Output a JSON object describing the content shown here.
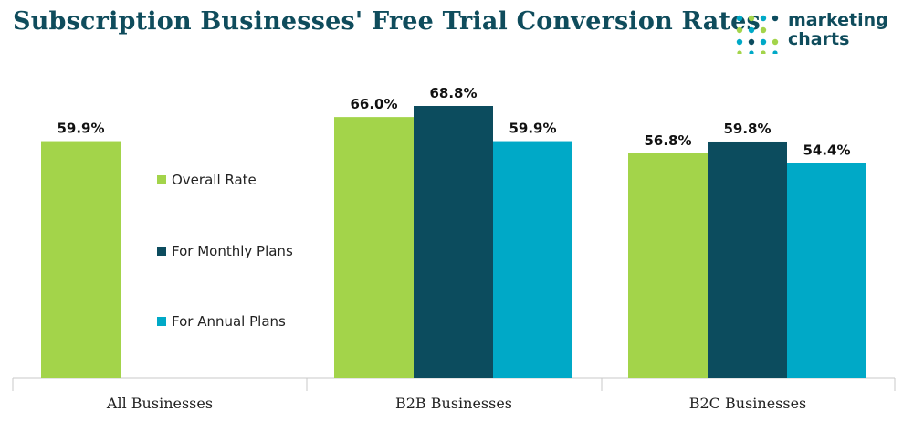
{
  "title": "Subscription Businesses' Free Trial Conversion Rates",
  "logo": {
    "line1": "marketing",
    "line2": "charts"
  },
  "colors": {
    "overall": "#a3d44a",
    "monthly": "#0c4c5e",
    "annual": "#00a9c7",
    "title": "#0f4c5c",
    "axis": "#c8c8c8"
  },
  "chart_data": {
    "type": "bar",
    "title": "Subscription Businesses' Free Trial Conversion Rates",
    "categories": [
      "All Businesses",
      "B2B Businesses",
      "B2C Businesses"
    ],
    "series": [
      {
        "name": "Overall Rate",
        "values": [
          59.9,
          66.0,
          56.8
        ],
        "labels": [
          "59.9%",
          "66.0%",
          "56.8%"
        ]
      },
      {
        "name": "For Monthly Plans",
        "values": [
          null,
          68.8,
          59.8
        ],
        "labels": [
          "",
          "68.8%",
          "59.8%"
        ]
      },
      {
        "name": "For Annual Plans",
        "values": [
          null,
          59.9,
          54.4
        ],
        "labels": [
          "",
          "59.9%",
          "54.4%"
        ]
      }
    ],
    "ylim": [
      0,
      75
    ],
    "grid": false,
    "legend": "inside-left"
  }
}
